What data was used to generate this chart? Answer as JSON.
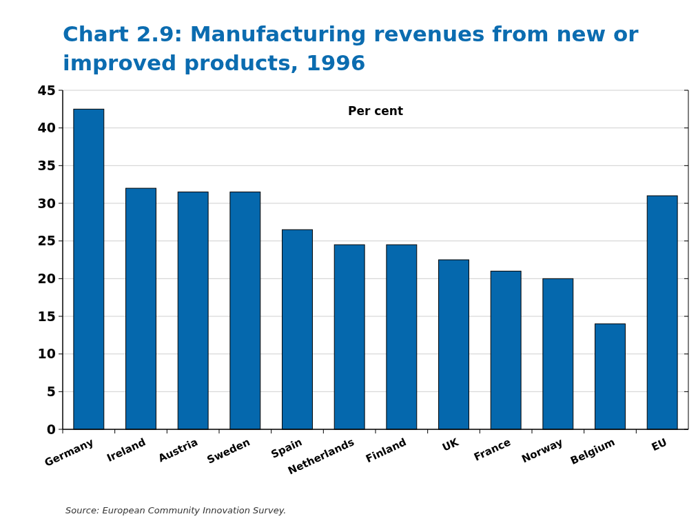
{
  "chart_data": {
    "type": "bar",
    "title": "Chart 2.9: Manufacturing revenues from new or improved products, 1996",
    "ylabel": "Per cent",
    "categories": [
      "Germany",
      "Ireland",
      "Austria",
      "Sweden",
      "Spain",
      "Netherlands",
      "Finland",
      "UK",
      "France",
      "Norway",
      "Belgium",
      "EU"
    ],
    "values": [
      42.5,
      32,
      31.5,
      31.5,
      26.5,
      24.5,
      24.5,
      22.5,
      21,
      20,
      14,
      31
    ],
    "color": "#0568ad",
    "ylim": [
      0,
      45
    ],
    "yticks": [
      0,
      5,
      10,
      15,
      20,
      25,
      30,
      35,
      40,
      45
    ],
    "grid": "y",
    "annotations": [
      "Source: European Community Innovation Survey."
    ]
  }
}
